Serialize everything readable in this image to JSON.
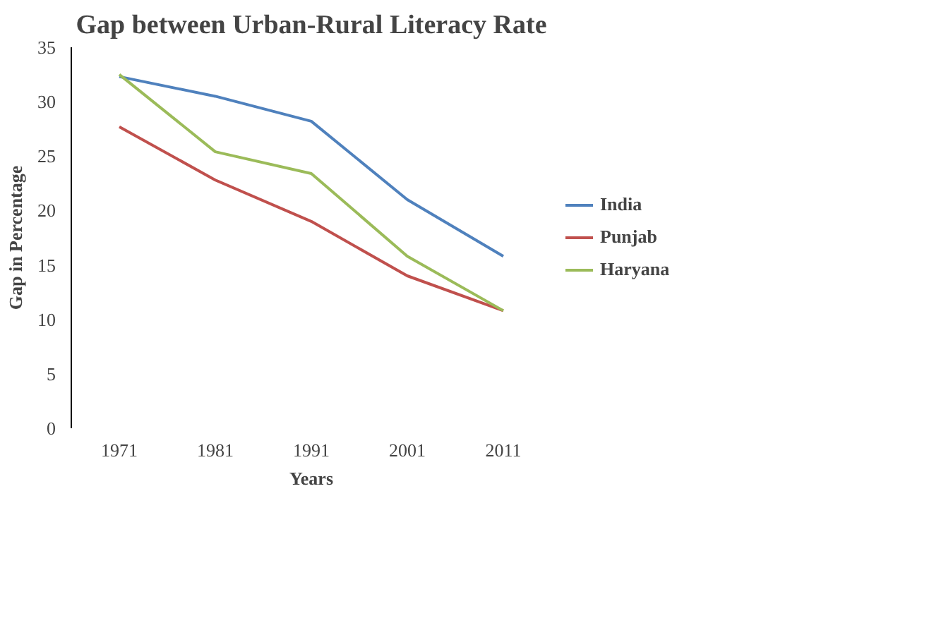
{
  "chart_data": {
    "type": "line",
    "title": "Gap between Urban-Rural Literacy Rate",
    "xlabel": "Years",
    "ylabel": "Gap in Percentage",
    "categories": [
      "1971",
      "1981",
      "1991",
      "2001",
      "2011"
    ],
    "series": [
      {
        "name": "India",
        "color": "#4f81bd",
        "values": [
          32.3,
          30.5,
          28.2,
          21,
          15.8
        ]
      },
      {
        "name": "Punjab",
        "color": "#c0504d",
        "values": [
          27.7,
          22.8,
          19,
          14,
          10.8
        ]
      },
      {
        "name": "Haryana",
        "color": "#9bbb59",
        "values": [
          32.5,
          25.4,
          23.4,
          15.8,
          10.8
        ]
      }
    ],
    "ylim": [
      0,
      35
    ],
    "yticks": [
      0,
      5,
      10,
      15,
      20,
      25,
      30,
      35
    ],
    "grid": false,
    "legend": "right",
    "marker": "none",
    "line_style": "solid"
  }
}
